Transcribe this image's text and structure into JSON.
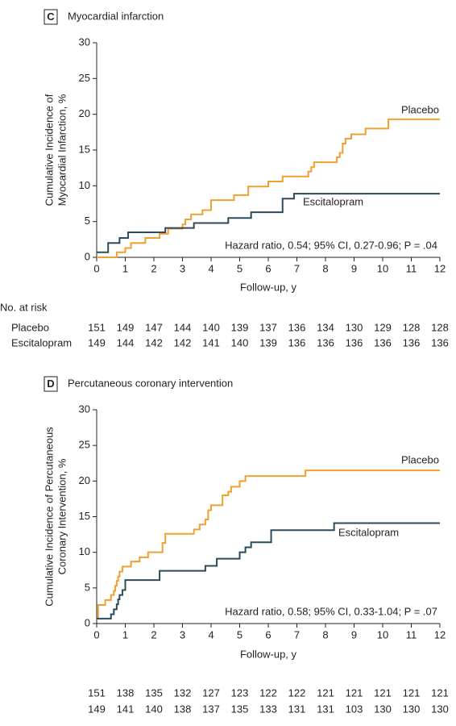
{
  "chart_data": [
    {
      "type": "line",
      "drawstyle": "steps-post",
      "panel": "C",
      "title": "Myocardial infarction",
      "ylabel": [
        "Cumulative Incidence of",
        "Myocardial Infarction, %"
      ],
      "xlabel": "Follow-up, y",
      "annotation": "Hazard ratio, 0.54; 95% CI, 0.27-0.96; P = .04",
      "xlim": [
        0,
        12
      ],
      "ylim": [
        0,
        30
      ],
      "xticks": [
        0,
        1,
        2,
        3,
        4,
        5,
        6,
        7,
        8,
        9,
        10,
        11,
        12
      ],
      "yticks": [
        0,
        5,
        10,
        15,
        20,
        25,
        30
      ],
      "series": [
        {
          "name": "Placebo",
          "color": "#f0a030",
          "x": [
            0,
            0.7,
            1.0,
            1.2,
            1.7,
            2.2,
            2.5,
            3.0,
            3.1,
            3.3,
            3.7,
            4.0,
            4.8,
            5.3,
            6.0,
            6.5,
            7.4,
            7.5,
            7.6,
            8.4,
            8.5,
            8.6,
            8.7,
            8.9,
            9.4,
            10.2,
            12
          ],
          "values": [
            0,
            0.7,
            1.3,
            2.0,
            2.7,
            3.3,
            4.0,
            4.6,
            5.3,
            6.0,
            6.6,
            8.0,
            8.7,
            9.9,
            10.6,
            11.3,
            12.0,
            12.6,
            13.3,
            14.0,
            14.6,
            15.9,
            16.6,
            17.2,
            18.0,
            19.3,
            19.3
          ]
        },
        {
          "name": "Escitalopram",
          "color": "#2d4a5a",
          "x": [
            0,
            0.4,
            0.8,
            1.1,
            1.8,
            2.4,
            3.4,
            4.6,
            5.4,
            6.5,
            6.9,
            12
          ],
          "values": [
            0.7,
            2.0,
            2.7,
            3.5,
            3.5,
            4.1,
            4.8,
            5.5,
            6.3,
            8.2,
            8.9,
            8.9
          ]
        }
      ],
      "at_risk": {
        "title": "No. at risk",
        "rows": [
          {
            "name": "Placebo",
            "values": [
              151,
              149,
              147,
              144,
              140,
              139,
              137,
              136,
              134,
              130,
              129,
              128,
              128
            ]
          },
          {
            "name": "Escitalopram",
            "values": [
              149,
              144,
              142,
              142,
              141,
              140,
              139,
              136,
              136,
              136,
              136,
              136,
              136
            ]
          }
        ]
      }
    },
    {
      "type": "line",
      "drawstyle": "steps-post",
      "panel": "D",
      "title": "Percutaneous coronary intervention",
      "ylabel": [
        "Cumulative Incidence of Percutaneous",
        "Coronary Intervention, %"
      ],
      "xlabel": "Follow-up, y",
      "annotation": "Hazard ratio, 0.58; 95% CI, 0.33-1.04; P = .07",
      "xlim": [
        0,
        12
      ],
      "ylim": [
        0,
        30
      ],
      "xticks": [
        0,
        1,
        2,
        3,
        4,
        5,
        6,
        7,
        8,
        9,
        10,
        11,
        12
      ],
      "yticks": [
        0,
        5,
        10,
        15,
        20,
        25,
        30
      ],
      "series": [
        {
          "name": "Placebo",
          "color": "#f0a030",
          "x": [
            0,
            0.05,
            0.3,
            0.5,
            0.6,
            0.65,
            0.7,
            0.75,
            0.8,
            0.9,
            1.2,
            1.5,
            1.8,
            2.3,
            2.4,
            3.4,
            3.6,
            3.8,
            3.9,
            4.0,
            4.4,
            4.6,
            4.7,
            5.0,
            5.2,
            7.3,
            12
          ],
          "values": [
            0.7,
            2.6,
            3.3,
            4.0,
            4.6,
            5.3,
            6.0,
            6.6,
            7.3,
            8.0,
            8.7,
            9.3,
            10.0,
            11.3,
            12.6,
            13.2,
            13.9,
            14.6,
            15.9,
            16.6,
            18.0,
            18.5,
            19.2,
            20.0,
            20.7,
            21.5,
            21.5
          ]
        },
        {
          "name": "Escitalopram",
          "color": "#2d4a5a",
          "x": [
            0,
            0.5,
            0.6,
            0.7,
            0.75,
            0.8,
            0.9,
            1.0,
            2.2,
            3.8,
            4.2,
            5.0,
            5.2,
            5.4,
            6.1,
            8.3,
            12
          ],
          "values": [
            0.7,
            1.3,
            2.0,
            2.7,
            3.4,
            4.0,
            4.7,
            6.1,
            7.4,
            8.1,
            9.1,
            10.0,
            10.7,
            11.4,
            13.1,
            14.1,
            14.1
          ]
        }
      ],
      "at_risk": {
        "rows": [
          {
            "values": [
              151,
              138,
              135,
              132,
              127,
              123,
              122,
              122,
              121,
              121,
              121,
              121,
              121
            ]
          },
          {
            "values": [
              149,
              141,
              140,
              138,
              137,
              135,
              133,
              131,
              131,
              103,
              130,
              130,
              130
            ]
          }
        ]
      }
    }
  ]
}
